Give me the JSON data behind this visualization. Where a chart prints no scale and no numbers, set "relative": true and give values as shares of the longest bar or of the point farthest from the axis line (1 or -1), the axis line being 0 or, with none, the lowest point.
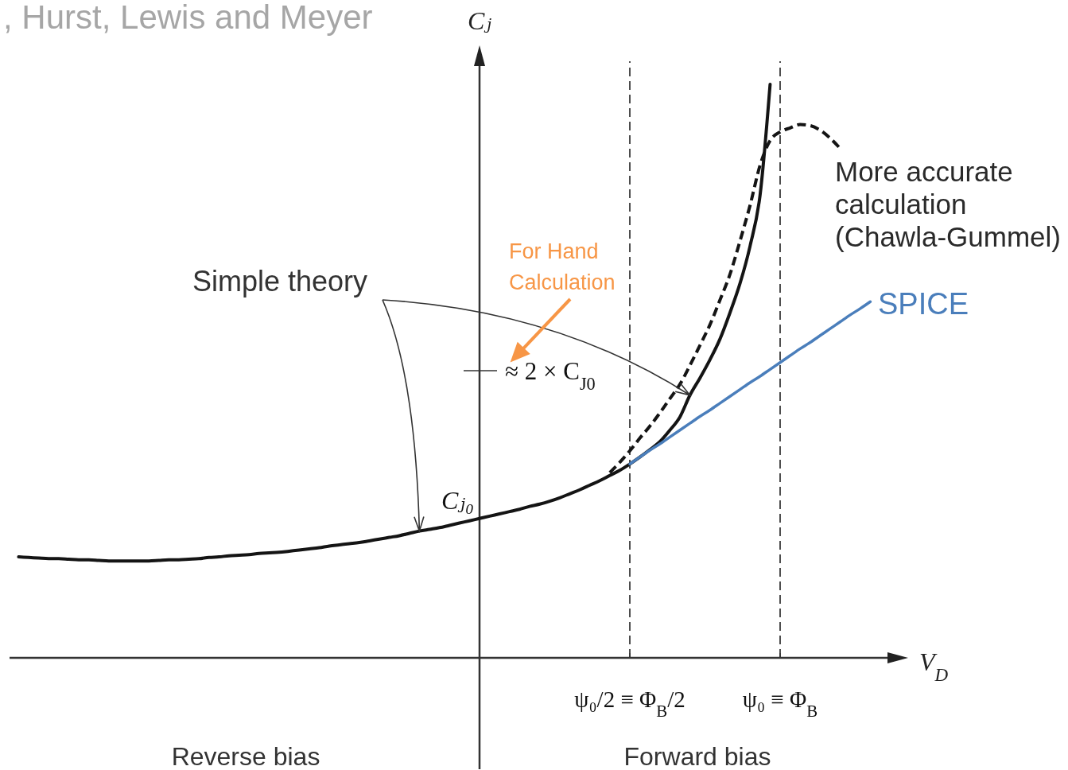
{
  "chart_data": {
    "type": "line",
    "relative": true,
    "grid": "x",
    "annotations": [
      ", Hurst, Lewis and Meyer",
      "Simple theory",
      "For Hand Calculation",
      "≈ 2 × C$_{J0}$",
      "Cⱼ₀",
      "Reverse bias",
      "Forward bias"
    ],
    "xlabel": "V$_{D}$",
    "ylabel": "Cⱼ",
    "categories": [
      null,
      null,
      null,
      null,
      null,
      null,
      null,
      null,
      null,
      null,
      null,
      null,
      null,
      null,
      null,
      null,
      null,
      null,
      null,
      null,
      null,
      null,
      null,
      null,
      null,
      null,
      null,
      null,
      null,
      null,
      null,
      null,
      null,
      null,
      null,
      null,
      null,
      null,
      null,
      null,
      null,
      null,
      null,
      null,
      null,
      null,
      null,
      null,
      null,
      null,
      null,
      null,
      null,
      null,
      null,
      null,
      null,
      null,
      null,
      null,
      null,
      "ψ₀/2 ≡ Φ$_{B}$/2",
      null,
      null,
      null,
      null,
      null,
      null,
      null,
      null,
      null,
      null,
      null,
      null,
      null,
      null,
      "ψ₀ ≡ Φ$_{B}$",
      null,
      null,
      null,
      null,
      null,
      null,
      null,
      null,
      null
    ],
    "series": [
      {
        "color": "#141414",
        "values": [
          0.176,
          0.175,
          0.174,
          0.173,
          0.173,
          0.172,
          0.171,
          0.171,
          0.17,
          0.169,
          0.169,
          0.169,
          0.169,
          0.169,
          0.17,
          0.171,
          0.171,
          0.172,
          0.173,
          0.175,
          0.176,
          0.178,
          0.179,
          0.18,
          0.182,
          0.183,
          0.184,
          0.186,
          0.188,
          0.19,
          0.192,
          0.195,
          0.197,
          0.199,
          0.201,
          0.204,
          0.207,
          0.21,
          0.213,
          0.217,
          0.221,
          0.224,
          0.227,
          0.231,
          0.235,
          0.239,
          0.243,
          0.247,
          0.251,
          0.255,
          0.259,
          0.264,
          0.268,
          0.273,
          0.279,
          0.286,
          0.293,
          0.301,
          0.309,
          0.318,
          0.327,
          0.338,
          0.35,
          0.363,
          0.377,
          0.397,
          0.42,
          0.458,
          0.488,
          0.52,
          0.556,
          0.602,
          0.653,
          0.718,
          0.807,
          1,
          null,
          null,
          null,
          null,
          null,
          null,
          null,
          null,
          null,
          null
        ]
      },
      {
        "name": "More accurate calculation (Chawla-Gummel)",
        "color": "#141414",
        "line_style": "dashed",
        "values": [
          null,
          null,
          null,
          null,
          null,
          null,
          null,
          null,
          null,
          null,
          null,
          null,
          null,
          null,
          null,
          null,
          null,
          null,
          null,
          null,
          null,
          null,
          null,
          null,
          null,
          null,
          null,
          null,
          null,
          null,
          null,
          null,
          null,
          null,
          null,
          null,
          null,
          null,
          null,
          null,
          null,
          null,
          null,
          null,
          null,
          null,
          null,
          null,
          null,
          null,
          null,
          null,
          null,
          null,
          null,
          null,
          null,
          null,
          null,
          0.323,
          0.341,
          0.361,
          0.383,
          0.404,
          0.427,
          0.452,
          0.477,
          0.51,
          0.545,
          0.581,
          0.624,
          0.669,
          0.727,
          0.789,
          0.859,
          0.902,
          0.917,
          0.924,
          0.93,
          0.928,
          0.92,
          0.906,
          0.888,
          null,
          null,
          null
        ]
      },
      {
        "name": "SPICE",
        "color": "#4a7ebb",
        "values": [
          null,
          null,
          null,
          null,
          null,
          null,
          null,
          null,
          null,
          null,
          null,
          null,
          null,
          null,
          null,
          null,
          null,
          null,
          null,
          null,
          null,
          null,
          null,
          null,
          null,
          null,
          null,
          null,
          null,
          null,
          null,
          null,
          null,
          null,
          null,
          null,
          null,
          null,
          null,
          null,
          null,
          null,
          null,
          null,
          null,
          null,
          null,
          null,
          null,
          null,
          null,
          null,
          null,
          null,
          null,
          null,
          null,
          null,
          null,
          null,
          null,
          0.338,
          0.35,
          0.362,
          0.373,
          0.385,
          0.397,
          0.409,
          0.421,
          0.432,
          0.444,
          0.456,
          0.468,
          0.48,
          0.491,
          0.503,
          0.515,
          0.527,
          0.539,
          0.55,
          0.562,
          0.574,
          0.586,
          0.598,
          0.609,
          0.621
        ]
      }
    ]
  }
}
